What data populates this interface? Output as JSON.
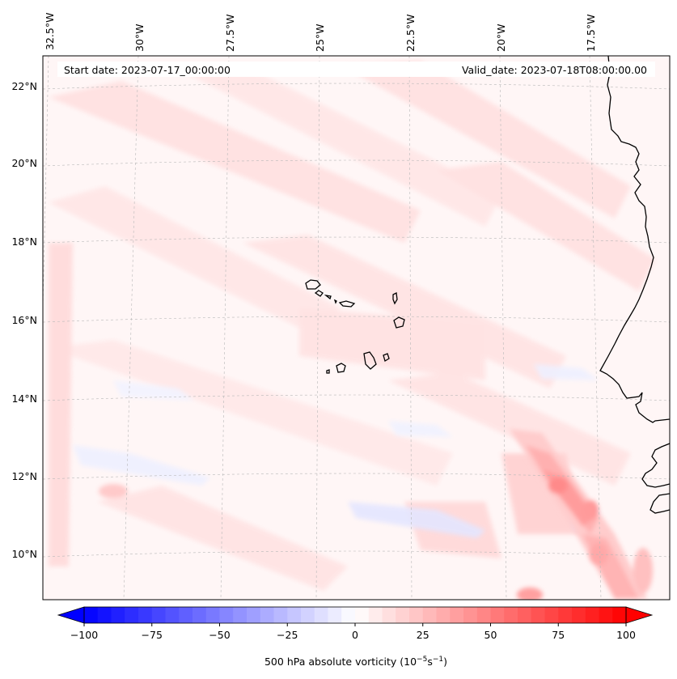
{
  "map": {
    "header": {
      "start_date": "Start date: 2023-07-17_00:00:00",
      "valid_date": "Valid_date: 2023-07-18T08:00:00.00"
    },
    "lon_labels": [
      "32.5°W",
      "30°W",
      "27.5°W",
      "25°W",
      "22.5°W",
      "20°W",
      "17.5°W"
    ],
    "lat_labels": [
      "22°N",
      "20°N",
      "18°N",
      "16°N",
      "14°N",
      "12°N",
      "10°N"
    ],
    "colorbar": {
      "label_main": "500 hPa absolute vorticity (10",
      "label_sup1": "−5",
      "label_mid": "s",
      "label_sup2": "−1",
      "label_end": ")",
      "ticks": [
        "−100",
        "−75",
        "−50",
        "−25",
        "0",
        "25",
        "50",
        "75",
        "100"
      ],
      "min": -100,
      "max": 100,
      "levels": 40,
      "neg_color": "#0000ff",
      "pos_color": "#ff0000",
      "mid_color": "#ffffff"
    },
    "colors": {
      "coast": "#000000",
      "grid": "#b0b0b0",
      "field_background": "#fff5f5"
    }
  }
}
